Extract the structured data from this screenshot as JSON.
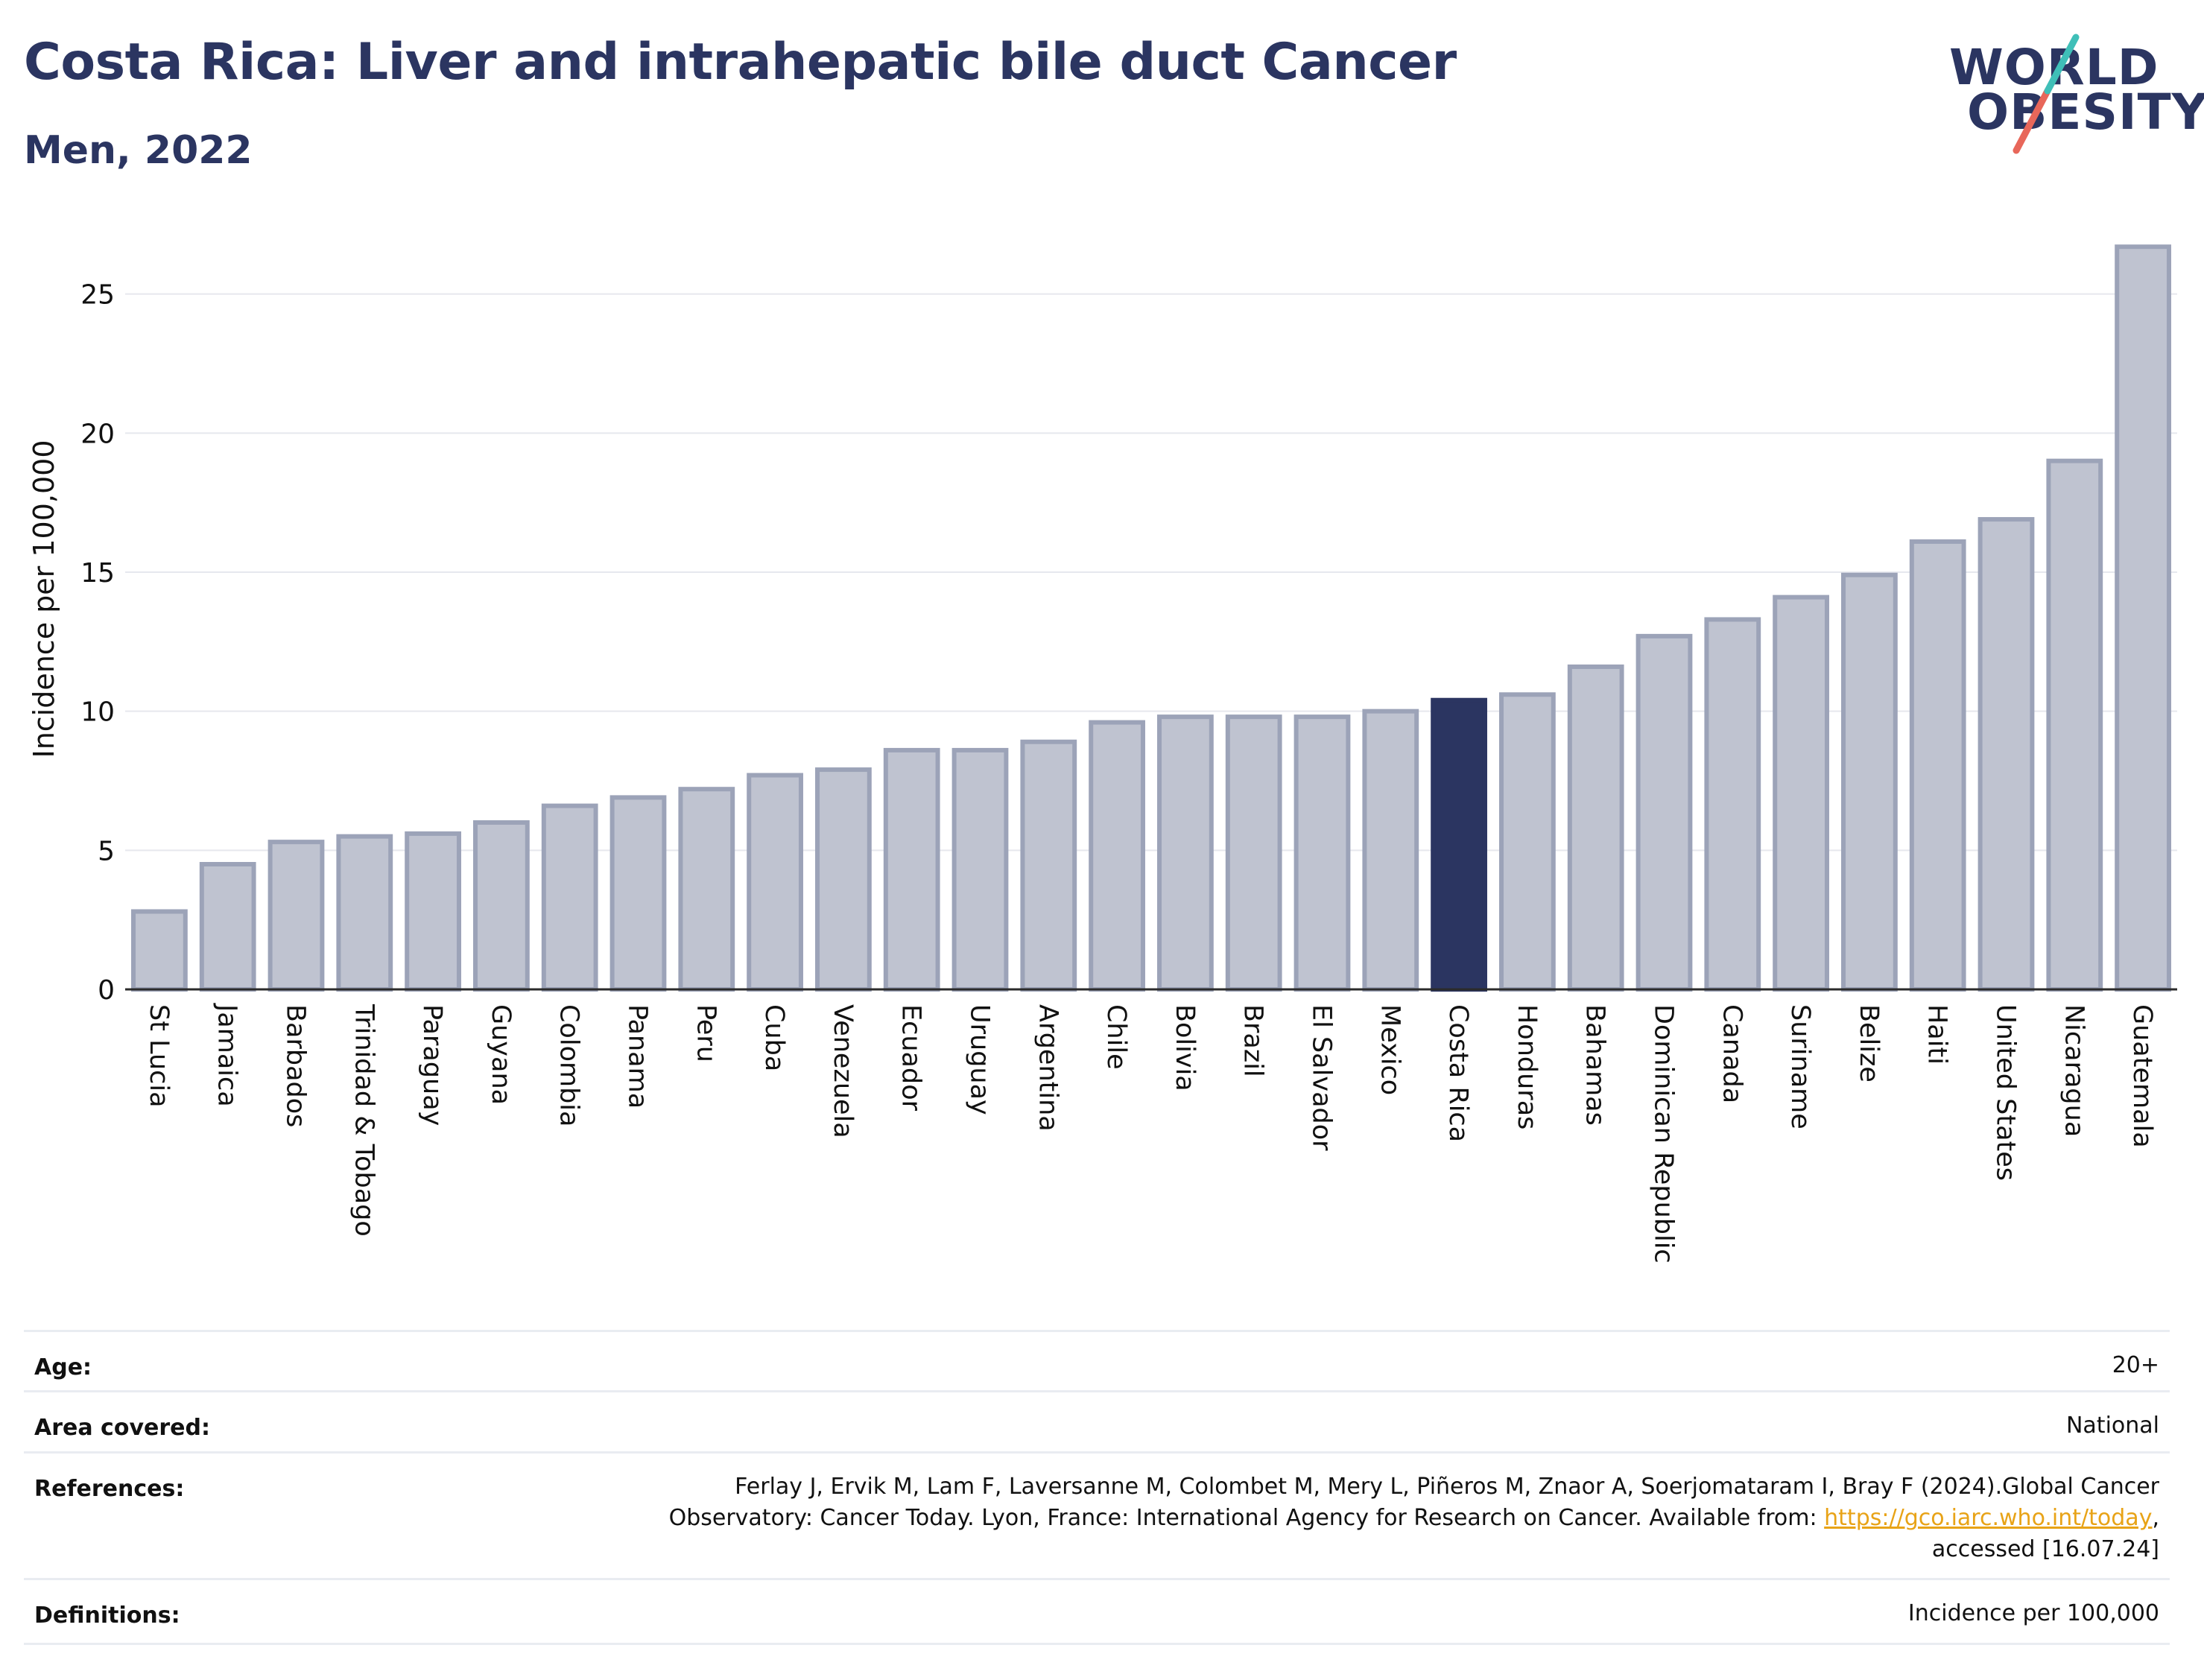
{
  "header": {
    "title": "Costa Rica: Liver and intrahepatic bile duct Cancer",
    "subtitle": "Men, 2022"
  },
  "logo": {
    "line1": "WORLD",
    "line2": "OBESITY",
    "colors": {
      "text": "#2b3561",
      "slash_teal": "#3fbfb8",
      "slash_red": "#e8675a"
    }
  },
  "chart_data": {
    "type": "bar",
    "ylabel": "Incidence per 100,000",
    "xlabel": "",
    "ylim": [
      0,
      27
    ],
    "yticks": [
      0,
      5,
      10,
      15,
      20,
      25
    ],
    "grid": true,
    "highlight": "Costa Rica",
    "colors": {
      "bar": "#bfc3d0",
      "bar_edge": "#9ca3b8",
      "highlight": "#2b3561"
    },
    "categories": [
      "St Lucia",
      "Jamaica",
      "Barbados",
      "Trinidad & Tobago",
      "Paraguay",
      "Guyana",
      "Colombia",
      "Panama",
      "Peru",
      "Cuba",
      "Venezuela",
      "Ecuador",
      "Uruguay",
      "Argentina",
      "Chile",
      "Bolivia",
      "Brazil",
      "El Salvador",
      "Mexico",
      "Costa Rica",
      "Honduras",
      "Bahamas",
      "Dominican Republic",
      "Canada",
      "Suriname",
      "Belize",
      "Haiti",
      "United States",
      "Nicaragua",
      "Guatemala"
    ],
    "values": [
      2.8,
      4.5,
      5.3,
      5.5,
      5.6,
      6.0,
      6.6,
      6.9,
      7.2,
      7.7,
      7.9,
      8.6,
      8.6,
      8.9,
      9.6,
      9.8,
      9.8,
      9.8,
      10.0,
      10.4,
      10.6,
      11.6,
      12.7,
      13.3,
      14.1,
      14.9,
      16.1,
      16.9,
      19.0,
      26.7
    ]
  },
  "meta": {
    "age_label": "Age:",
    "age_value": "20+",
    "area_label": "Area covered:",
    "area_value": "National",
    "references_label": "References:",
    "references_line1": "Ferlay J, Ervik M, Lam F, Laversanne M, Colombet M, Mery L, Piñeros M, Znaor A, Soerjomataram I, Bray F (2024).Global Cancer",
    "references_line2_pre": "Observatory: Cancer Today. Lyon, France: International Agency for Research on Cancer. Available from: ",
    "references_link": "https://gco.iarc.who.int/today",
    "references_line2_post": ",",
    "references_line3": "accessed [16.07.24]",
    "definitions_label": "Definitions:",
    "definitions_value": "Incidence per 100,000"
  }
}
